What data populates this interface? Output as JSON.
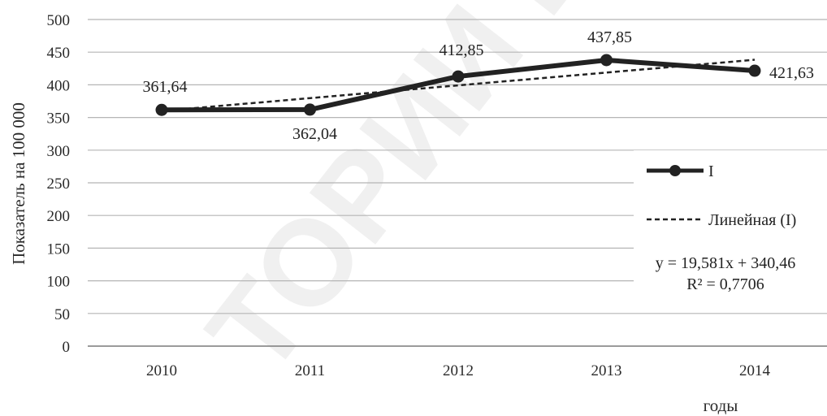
{
  "chart_data": {
    "type": "line",
    "categories": [
      "2010",
      "2011",
      "2012",
      "2013",
      "2014"
    ],
    "series": [
      {
        "name": "I",
        "values": [
          361.64,
          362.04,
          412.85,
          437.85,
          421.63
        ],
        "labels": [
          "361,64",
          "362,04",
          "412,85",
          "437,85",
          "421,63"
        ],
        "color": "#222222"
      }
    ],
    "trendline": {
      "name": "Линейная (I)",
      "type": "linear",
      "slope": 19.581,
      "intercept": 340.46,
      "equation": "y = 19,581x + 340,46",
      "r_squared": "R² = 0,7706",
      "color": "#222222"
    },
    "yticks": [
      0,
      50,
      100,
      150,
      200,
      250,
      300,
      350,
      400,
      450,
      500
    ],
    "ylim": [
      0,
      500
    ],
    "ylabel": "Показатель на 100 000",
    "xlabel": "годы",
    "grid": true,
    "legend": "right",
    "watermark": "ТОРИИ БГ"
  }
}
